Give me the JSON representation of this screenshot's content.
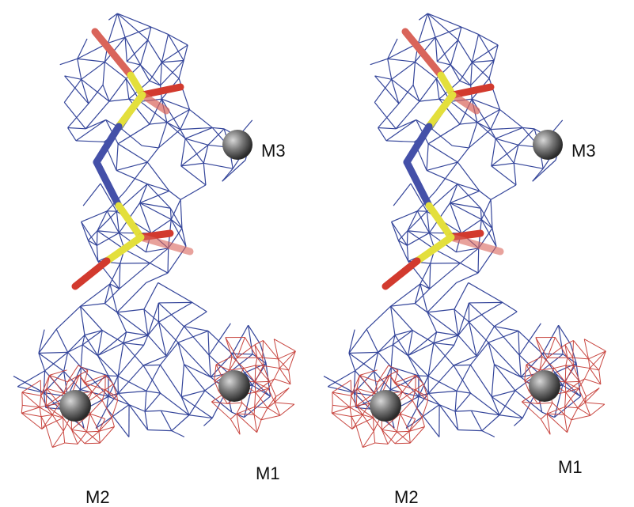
{
  "panels": [
    {
      "labels": [
        "M3",
        "M1",
        "M2"
      ]
    },
    {
      "labels": [
        "M3",
        "M1",
        "M2"
      ]
    }
  ]
}
